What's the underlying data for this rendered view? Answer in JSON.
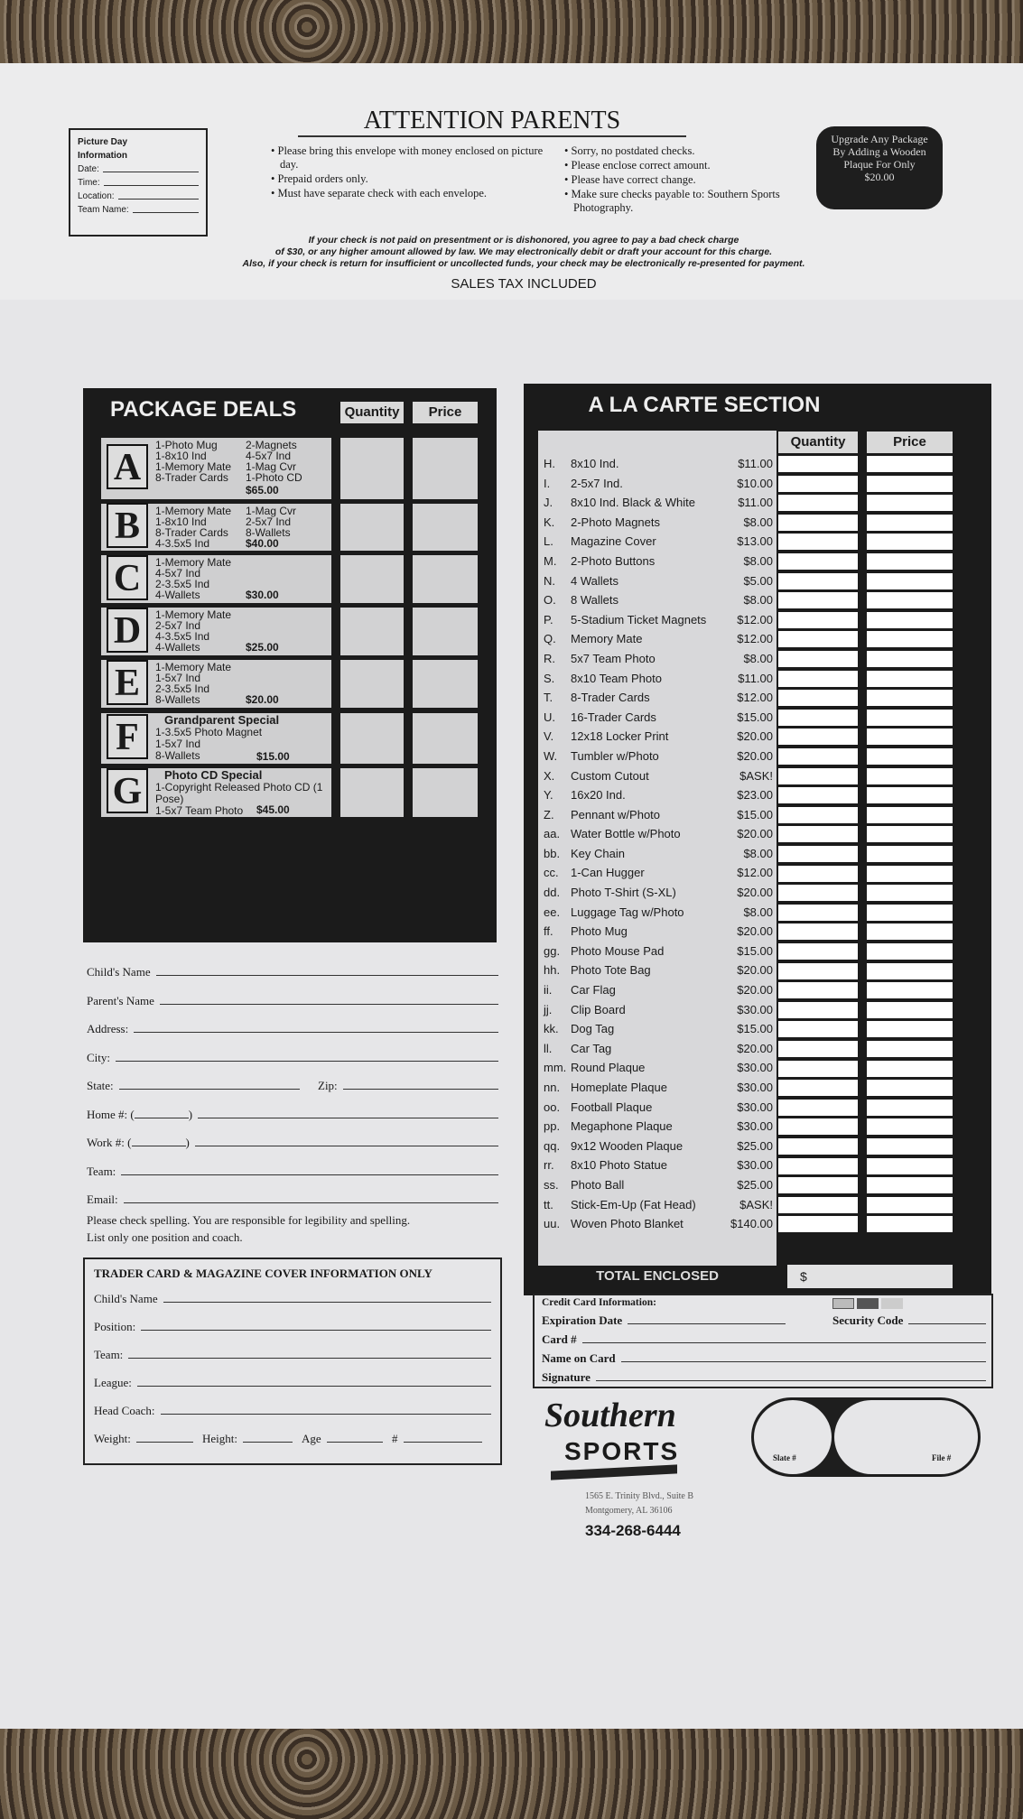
{
  "header": {
    "title": "ATTENTION PARENTS",
    "picture_day": {
      "title1": "Picture Day",
      "title2": "Information",
      "fields": [
        "Date:",
        "Time:",
        "Location:",
        "Team Name:"
      ]
    },
    "bullets_left": [
      "Please bring this envelope with money enclosed on picture day.",
      "Prepaid orders only.",
      "Must have separate check with each envelope."
    ],
    "bullets_right": [
      "Sorry, no postdated checks.",
      "Please enclose correct amount.",
      "Please have correct change.",
      "Make sure checks payable to: Southern Sports Photography."
    ],
    "upgrade_badge": "Upgrade Any Package By Adding a Wooden Plaque For Only $20.00",
    "notice": [
      "If your check is not paid on presentment or is dishonored, you agree to pay a bad check charge",
      "of $30, or any higher amount allowed by law. We may electronically debit or draft your account for this charge.",
      "Also, if your check is return for insufficient or uncollected funds, your check may be electronically re-presented for payment."
    ],
    "sales_tax": "SALES TAX INCLUDED"
  },
  "packages": {
    "title": "PACKAGE DEALS",
    "qty_label": "Quantity",
    "price_label": "Price",
    "items": [
      {
        "letter": "A",
        "lines": [
          "1-Photo Mug",
          "1-8x10 Ind",
          "1-Memory Mate",
          "8-Trader Cards"
        ],
        "lines2": [
          "2-Magnets",
          "4-5x7 Ind",
          "1-Mag Cvr",
          "1-Photo CD"
        ],
        "price": "$65.00"
      },
      {
        "letter": "B",
        "lines": [
          "1-Memory Mate",
          "1-8x10 Ind",
          "8-Trader Cards",
          "4-3.5x5 Ind"
        ],
        "lines2": [
          "1-Mag Cvr",
          "2-5x7 Ind",
          "8-Wallets"
        ],
        "price": "$40.00"
      },
      {
        "letter": "C",
        "lines": [
          "1-Memory Mate",
          "4-5x7 Ind",
          "2-3.5x5 Ind",
          "4-Wallets"
        ],
        "lines2": [],
        "price": "$30.00"
      },
      {
        "letter": "D",
        "lines": [
          "1-Memory Mate",
          "2-5x7 Ind",
          "4-3.5x5 Ind",
          "4-Wallets"
        ],
        "lines2": [],
        "price": "$25.00"
      },
      {
        "letter": "E",
        "lines": [
          "1-Memory Mate",
          "1-5x7 Ind",
          "2-3.5x5 Ind",
          "8-Wallets"
        ],
        "lines2": [],
        "price": "$20.00"
      },
      {
        "letter": "F",
        "heading": "Grandparent Special",
        "lines": [
          "1-3.5x5 Photo Magnet",
          "1-5x7 Ind",
          "8-Wallets"
        ],
        "lines2": [],
        "price": "$15.00"
      },
      {
        "letter": "G",
        "heading": "Photo CD Special",
        "lines": [
          "1-Copyright Released Photo CD (1 Pose)",
          "1-5x7 Team Photo"
        ],
        "lines2": [],
        "price": "$45.00"
      }
    ]
  },
  "contact_form": {
    "fields": [
      "Child's Name",
      "Parent's Name",
      "Address:",
      "City:",
      "State:",
      "Zip:",
      "Home #: (",
      "Work #: (",
      "Team:",
      "Email:"
    ],
    "note": [
      "Please check spelling. You are responsible for legibility and spelling.",
      "List only one position and coach."
    ]
  },
  "trader_card": {
    "title": "TRADER CARD & MAGAZINE COVER INFORMATION ONLY",
    "fields": [
      "Child's Name",
      "Position:",
      "Team:",
      "League:",
      "Head Coach:"
    ],
    "bottom": [
      "Weight:",
      "Height:",
      "Age",
      "#"
    ]
  },
  "a_la_carte": {
    "title": "A LA CARTE SECTION",
    "qty_label": "Quantity",
    "price_label": "Price",
    "items": [
      [
        "H.",
        "8x10 Ind.",
        "$11.00"
      ],
      [
        "I.",
        "2-5x7 Ind.",
        "$10.00"
      ],
      [
        "J.",
        "8x10 Ind. Black & White",
        "$11.00"
      ],
      [
        "K.",
        "2-Photo Magnets",
        "$8.00"
      ],
      [
        "L.",
        "Magazine Cover",
        "$13.00"
      ],
      [
        "M.",
        "2-Photo Buttons",
        "$8.00"
      ],
      [
        "N.",
        "4 Wallets",
        "$5.00"
      ],
      [
        "O.",
        "8 Wallets",
        "$8.00"
      ],
      [
        "P.",
        "5-Stadium Ticket Magnets",
        "$12.00"
      ],
      [
        "Q.",
        "Memory Mate",
        "$12.00"
      ],
      [
        "R.",
        "5x7 Team Photo",
        "$8.00"
      ],
      [
        "S.",
        "8x10 Team Photo",
        "$11.00"
      ],
      [
        "T.",
        "8-Trader Cards",
        "$12.00"
      ],
      [
        "U.",
        "16-Trader Cards",
        "$15.00"
      ],
      [
        "V.",
        "12x18 Locker Print",
        "$20.00"
      ],
      [
        "W.",
        "Tumbler w/Photo",
        "$20.00"
      ],
      [
        "X.",
        "Custom Cutout",
        "$ASK!"
      ],
      [
        "Y.",
        "16x20 Ind.",
        "$23.00"
      ],
      [
        "Z.",
        "Pennant w/Photo",
        "$15.00"
      ],
      [
        "aa.",
        "Water Bottle w/Photo",
        "$20.00"
      ],
      [
        "bb.",
        "Key Chain",
        "$8.00"
      ],
      [
        "cc.",
        "1-Can Hugger",
        "$12.00"
      ],
      [
        "dd.",
        "Photo T-Shirt (S-XL)",
        "$20.00"
      ],
      [
        "ee.",
        "Luggage Tag w/Photo",
        "$8.00"
      ],
      [
        "ff.",
        "Photo Mug",
        "$20.00"
      ],
      [
        "gg.",
        "Photo Mouse Pad",
        "$15.00"
      ],
      [
        "hh.",
        "Photo Tote Bag",
        "$20.00"
      ],
      [
        "ii.",
        "Car Flag",
        "$20.00"
      ],
      [
        "jj.",
        "Clip Board",
        "$30.00"
      ],
      [
        "kk.",
        "Dog Tag",
        "$15.00"
      ],
      [
        "ll.",
        "Car Tag",
        "$20.00"
      ],
      [
        "mm.",
        "Round Plaque",
        "$30.00"
      ],
      [
        "nn.",
        "Homeplate Plaque",
        "$30.00"
      ],
      [
        "oo.",
        "Football Plaque",
        "$30.00"
      ],
      [
        "pp.",
        "Megaphone Plaque",
        "$30.00"
      ],
      [
        "qq.",
        "9x12 Wooden Plaque",
        "$25.00"
      ],
      [
        "rr.",
        "8x10 Photo Statue",
        "$30.00"
      ],
      [
        "ss.",
        "Photo Ball",
        "$25.00"
      ],
      [
        "tt.",
        "Stick-Em-Up (Fat Head)",
        "$ASK!"
      ],
      [
        "uu.",
        "Woven Photo Blanket",
        "$140.00"
      ]
    ],
    "total_label": "TOTAL ENCLOSED",
    "total_prefix": "$"
  },
  "credit_card": {
    "title": "Credit Card Information:",
    "expiration": "Expiration Date",
    "security": "Security Code",
    "card": "Card #",
    "name": "Name on Card",
    "signature": "Signature",
    "card_icons": [
      "visa-icon",
      "mastercard-icon",
      "discover-icon"
    ]
  },
  "slate": {
    "slate_label": "Slate #",
    "file_label": "File #"
  },
  "company": {
    "logo_script": "Southern",
    "logo_block": "SPORTS",
    "address1": "1565 E. Trinity Blvd., Suite B",
    "address2": "Montgomery, AL 36106",
    "phone": "334-268-6444"
  }
}
